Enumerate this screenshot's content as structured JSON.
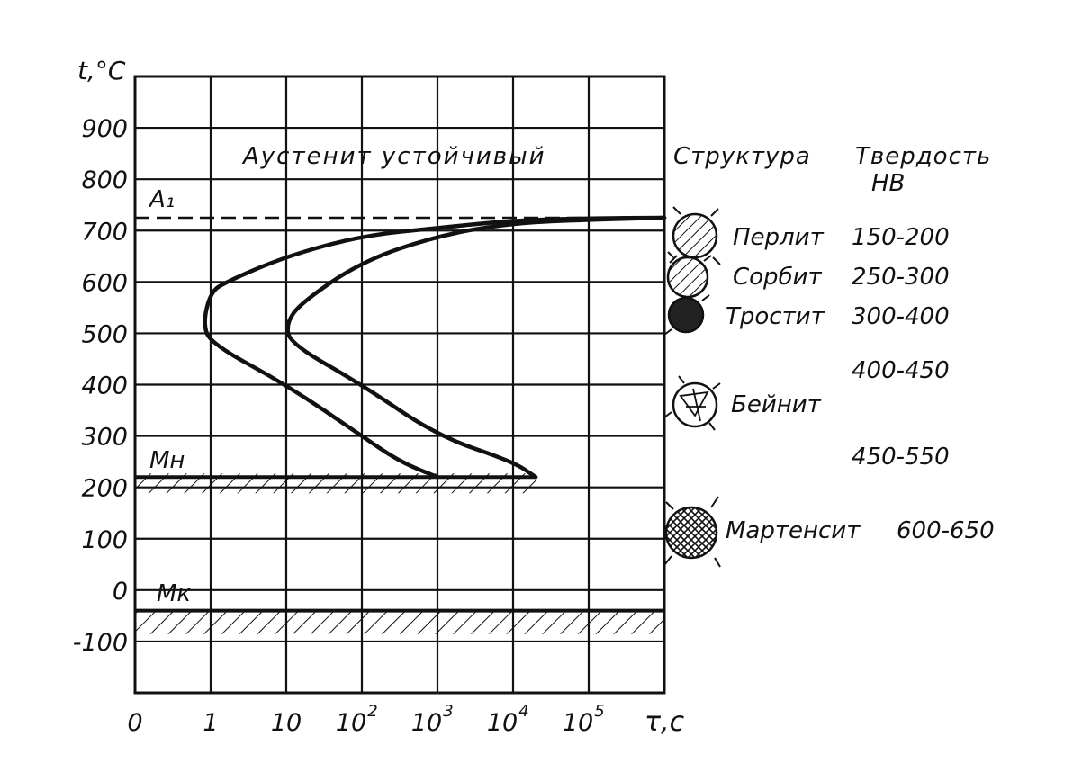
{
  "chart_data": {
    "type": "line",
    "title": "",
    "ylabel": "t,°C",
    "xlabel": "τ,с",
    "y_tick_labels": [
      "900",
      "800",
      "700",
      "600",
      "500",
      "400",
      "300",
      "200",
      "100",
      "0",
      "-100"
    ],
    "y_tick_values": [
      900,
      800,
      700,
      600,
      500,
      400,
      300,
      200,
      100,
      0,
      -100
    ],
    "ylim": [
      -200,
      1000
    ],
    "x_tick_labels": [
      "0",
      "1",
      "10",
      "10",
      "10",
      "10",
      "10"
    ],
    "x_tick_exponents": [
      "",
      "",
      "",
      "2",
      "3",
      "4",
      "5"
    ],
    "x_grid_positions": [
      0,
      1,
      2,
      3,
      4,
      5,
      6,
      7
    ],
    "grid": true,
    "series": [
      {
        "points": [
          [
            7,
            725
          ],
          [
            6,
            724
          ],
          [
            5,
            720
          ],
          [
            4,
            705
          ],
          [
            3,
            690
          ],
          [
            2,
            650
          ],
          [
            1.2,
            600
          ],
          [
            1,
            580
          ],
          [
            0.9,
            520
          ],
          [
            1,
            480
          ],
          [
            2,
            400
          ],
          [
            3,
            300
          ],
          [
            3.5,
            250
          ],
          [
            4,
            220
          ]
        ]
      },
      {
        "points": [
          [
            7,
            725
          ],
          [
            6,
            721
          ],
          [
            5,
            715
          ],
          [
            4,
            690
          ],
          [
            3,
            640
          ],
          [
            2.2,
            560
          ],
          [
            2,
            520
          ],
          [
            2.05,
            480
          ],
          [
            3,
            400
          ],
          [
            4,
            300
          ],
          [
            5,
            250
          ],
          [
            5.3,
            220
          ]
        ]
      }
    ],
    "annotations": {
      "austenite": "Аустенит устойчивый",
      "a1": "A₁",
      "a1_value": 725,
      "mn": "Mн",
      "mn_value": 220,
      "mk": "Mк",
      "mk_value": -40
    },
    "structures_header": "Структура",
    "hardness_header_1": "Твердость",
    "hardness_header_2": "НВ",
    "structures": [
      {
        "name": "Перлит",
        "hardness": "150-200"
      },
      {
        "name": "Сорбит",
        "hardness": "250-300"
      },
      {
        "name": "Тростит",
        "hardness": "300-400"
      },
      {
        "name": "",
        "hardness": "400-450"
      },
      {
        "name": "Бейнит",
        "hardness": ""
      },
      {
        "name": "",
        "hardness": "450-550"
      },
      {
        "name": "Мартенсит",
        "hardness": "600-650"
      }
    ],
    "colors": {
      "ink": "#111111",
      "background": "#ffffff"
    }
  }
}
